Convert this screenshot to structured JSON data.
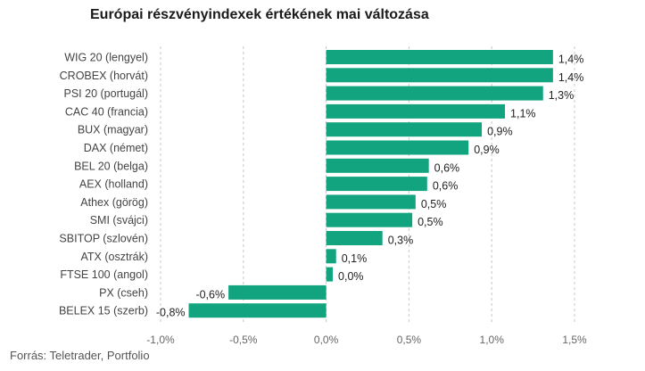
{
  "title": "Európai részvényindexek értékének mai változása",
  "source": "Forrás: Teletrader, Portfolio",
  "chart_data": {
    "type": "bar",
    "orientation": "horizontal",
    "categories": [
      "WIG 20 (lengyel)",
      "CROBEX (horvát)",
      "PSI 20 (portugál)",
      "CAC 40 (francia)",
      "BUX (magyar)",
      "DAX (német)",
      "BEL 20 (belga)",
      "AEX (holland)",
      "Athex (görög)",
      "SMI (svájci)",
      "SBITOP (szlovén)",
      "ATX (osztrák)",
      "FTSE 100 (angol)",
      "PX (cseh)",
      "BELEX 15 (szerb)"
    ],
    "values": [
      1.37,
      1.37,
      1.31,
      1.08,
      0.94,
      0.86,
      0.62,
      0.61,
      0.54,
      0.52,
      0.34,
      0.06,
      0.04,
      -0.59,
      -0.83
    ],
    "value_labels": [
      "1,4%",
      "1,4%",
      "1,3%",
      "1,1%",
      "0,9%",
      "0,9%",
      "0,6%",
      "0,6%",
      "0,5%",
      "0,5%",
      "0,3%",
      "0,1%",
      "0,0%",
      "-0,6%",
      "-0,8%"
    ],
    "xlim": [
      -1.0,
      1.5
    ],
    "xticks": [
      -1.0,
      -0.5,
      0.0,
      0.5,
      1.0,
      1.5
    ],
    "xtick_labels": [
      "-1,0%",
      "-0,5%",
      "0,0%",
      "0,5%",
      "1,0%",
      "1,5%"
    ],
    "bar_color": "#12a37f",
    "grid": "vertical-dashed"
  }
}
